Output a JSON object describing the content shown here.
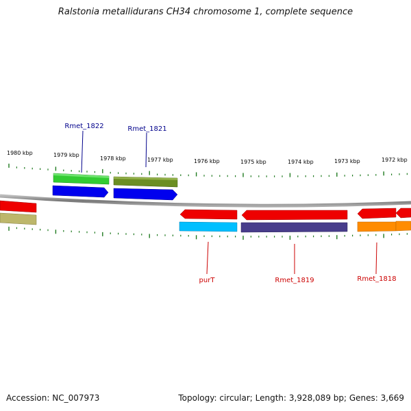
{
  "title": "Ralstonia metallidurans CH34 chromosome 1, complete sequence",
  "footer": {
    "accession": "Accession: NC_007973",
    "summary": "Topology: circular; Length: 3,928,089 bp; Genes: 3,669"
  },
  "colors": {
    "backbone": "#888888",
    "tick": "#1f7a1f",
    "forward_label": "#00008b",
    "reverse_label": "#cc0000",
    "green": "#33cc33",
    "olive": "#6b8e23",
    "blue": "#0000ee",
    "red": "#ee0000",
    "khaki": "#bdb76b",
    "cyan": "#00bfff",
    "navy": "#483d8b",
    "orange": "#ff8c00"
  },
  "ticks": [
    {
      "label": "1980 kbp"
    },
    {
      "label": "1979 kbp"
    },
    {
      "label": "1978 kbp"
    },
    {
      "label": "1977 kbp"
    },
    {
      "label": "1976 kbp"
    },
    {
      "label": "1975 kbp"
    },
    {
      "label": "1974 kbp"
    },
    {
      "label": "1973 kbp"
    },
    {
      "label": "1972 kbp"
    }
  ],
  "genes": [
    {
      "label": "Rmet_1822",
      "strand": "forward"
    },
    {
      "label": "Rmet_1821",
      "strand": "forward"
    },
    {
      "label": "purT",
      "strand": "reverse"
    },
    {
      "label": "Rmet_1819",
      "strand": "reverse"
    },
    {
      "label": "Rmet_1818",
      "strand": "reverse"
    }
  ]
}
